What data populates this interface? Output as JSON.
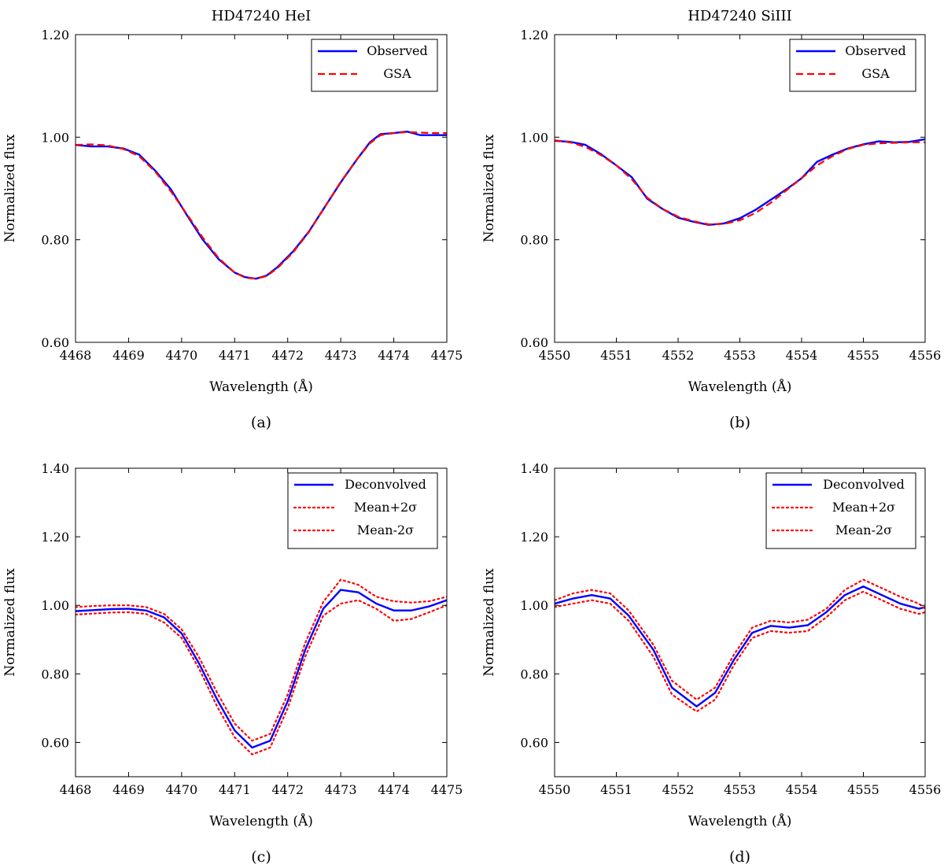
{
  "chart_data": [
    {
      "type": "line",
      "title": "HD47240 HeI",
      "caption": "(a)",
      "xlabel": "Wavelength (Å)",
      "ylabel": "Normalized flux",
      "xlim": [
        4468,
        4475
      ],
      "ylim": [
        0.6,
        1.2
      ],
      "xticks": [
        "4468",
        "4469",
        "4470",
        "4471",
        "4472",
        "4473",
        "4474",
        "4475"
      ],
      "yticks": [
        "0.60",
        "0.80",
        "1.00",
        "1.20"
      ],
      "legend_position": "top-right",
      "series": [
        {
          "name": "Observed",
          "color": "#0000ff",
          "style": "solid",
          "x": [
            4468.0,
            4468.3,
            4468.6,
            4468.9,
            4469.2,
            4469.5,
            4469.8,
            4470.1,
            4470.4,
            4470.7,
            4471.0,
            4471.2,
            4471.4,
            4471.6,
            4471.8,
            4472.1,
            4472.4,
            4472.7,
            4473.0,
            4473.3,
            4473.55,
            4473.75,
            4474.0,
            4474.25,
            4474.5,
            4474.75,
            4475.0
          ],
          "y": [
            0.985,
            0.982,
            0.982,
            0.978,
            0.966,
            0.935,
            0.898,
            0.848,
            0.8,
            0.762,
            0.736,
            0.727,
            0.724,
            0.73,
            0.746,
            0.777,
            0.816,
            0.864,
            0.912,
            0.956,
            0.99,
            1.006,
            1.008,
            1.011,
            1.004,
            1.004,
            1.004
          ]
        },
        {
          "name": "GSA",
          "color": "#ff0000",
          "style": "dashed",
          "x": [
            4468.0,
            4468.3,
            4468.6,
            4468.9,
            4469.2,
            4469.5,
            4469.8,
            4470.1,
            4470.4,
            4470.7,
            4471.0,
            4471.2,
            4471.4,
            4471.6,
            4471.8,
            4472.1,
            4472.4,
            4472.7,
            4473.0,
            4473.3,
            4473.55,
            4473.75,
            4474.0,
            4474.25,
            4474.5,
            4474.75,
            4475.0
          ],
          "y": [
            0.985,
            0.986,
            0.984,
            0.977,
            0.963,
            0.933,
            0.894,
            0.85,
            0.804,
            0.764,
            0.736,
            0.726,
            0.724,
            0.729,
            0.744,
            0.775,
            0.815,
            0.864,
            0.913,
            0.956,
            0.988,
            1.004,
            1.008,
            1.01,
            1.009,
            1.008,
            1.008
          ]
        }
      ]
    },
    {
      "type": "line",
      "title": "HD47240 SiIII",
      "caption": "(b)",
      "xlabel": "Wavelength (Å)",
      "ylabel": "Normalized flux",
      "xlim": [
        4550,
        4556
      ],
      "ylim": [
        0.6,
        1.2
      ],
      "xticks": [
        "4550",
        "4551",
        "4552",
        "4553",
        "4554",
        "4555",
        "4556"
      ],
      "yticks": [
        "0.60",
        "0.80",
        "1.00",
        "1.20"
      ],
      "legend_position": "top-right",
      "series": [
        {
          "name": "Observed",
          "color": "#0000ff",
          "style": "solid",
          "x": [
            4550.0,
            4550.25,
            4550.5,
            4550.75,
            4551.0,
            4551.25,
            4551.5,
            4551.75,
            4552.0,
            4552.25,
            4552.5,
            4552.75,
            4553.0,
            4553.25,
            4553.5,
            4553.75,
            4554.0,
            4554.25,
            4554.5,
            4554.75,
            4555.0,
            4555.25,
            4555.5,
            4555.75,
            4556.0
          ],
          "y": [
            0.993,
            0.991,
            0.985,
            0.967,
            0.945,
            0.922,
            0.88,
            0.86,
            0.843,
            0.835,
            0.829,
            0.832,
            0.842,
            0.858,
            0.878,
            0.898,
            0.92,
            0.952,
            0.966,
            0.978,
            0.986,
            0.992,
            0.99,
            0.991,
            0.996
          ]
        },
        {
          "name": "GSA",
          "color": "#ff0000",
          "style": "dashed",
          "x": [
            4550.0,
            4550.25,
            4550.5,
            4550.75,
            4551.0,
            4551.25,
            4551.5,
            4551.75,
            4552.0,
            4552.25,
            4552.5,
            4552.75,
            4553.0,
            4553.25,
            4553.5,
            4553.75,
            4554.0,
            4554.25,
            4554.5,
            4554.75,
            4555.0,
            4555.25,
            4555.5,
            4555.75,
            4556.0
          ],
          "y": [
            0.994,
            0.99,
            0.981,
            0.965,
            0.945,
            0.918,
            0.882,
            0.86,
            0.845,
            0.836,
            0.83,
            0.831,
            0.838,
            0.852,
            0.872,
            0.896,
            0.92,
            0.945,
            0.963,
            0.977,
            0.985,
            0.988,
            0.989,
            0.99,
            0.99
          ]
        }
      ]
    },
    {
      "type": "line",
      "caption": "(c)",
      "xlabel": "Wavelength (Å)",
      "ylabel": "Normalized flux",
      "xlim": [
        4468,
        4475
      ],
      "ylim": [
        0.5,
        1.4
      ],
      "xticks": [
        "4468",
        "4469",
        "4470",
        "4471",
        "4472",
        "4473",
        "4474",
        "4475"
      ],
      "yticks": [
        "0.60",
        "0.80",
        "1.00",
        "1.20",
        "1.40"
      ],
      "legend_position": "top-right",
      "series": [
        {
          "name": "Deconvolved",
          "color": "#0000ff",
          "style": "solid",
          "x": [
            4468.0,
            4468.33,
            4468.67,
            4469.0,
            4469.33,
            4469.67,
            4470.0,
            4470.33,
            4470.67,
            4471.0,
            4471.33,
            4471.67,
            4472.0,
            4472.33,
            4472.67,
            4473.0,
            4473.33,
            4473.67,
            4474.0,
            4474.33,
            4474.67,
            4475.0
          ],
          "y": [
            0.983,
            0.986,
            0.989,
            0.99,
            0.985,
            0.965,
            0.918,
            0.83,
            0.725,
            0.635,
            0.585,
            0.605,
            0.72,
            0.87,
            0.99,
            1.045,
            1.038,
            1.005,
            0.985,
            0.985,
            0.997,
            1.015
          ]
        },
        {
          "name": "Mean+2σ",
          "color": "#ff0000",
          "style": "dotted",
          "x": [
            4468.0,
            4468.33,
            4468.67,
            4469.0,
            4469.33,
            4469.67,
            4470.0,
            4470.33,
            4470.67,
            4471.0,
            4471.33,
            4471.67,
            4472.0,
            4472.33,
            4472.67,
            4473.0,
            4473.33,
            4473.67,
            4474.0,
            4474.33,
            4474.67,
            4475.0
          ],
          "y": [
            0.995,
            0.998,
            1.0,
            1.0,
            0.995,
            0.975,
            0.93,
            0.848,
            0.745,
            0.655,
            0.605,
            0.625,
            0.74,
            0.89,
            1.01,
            1.075,
            1.06,
            1.025,
            1.012,
            1.008,
            1.012,
            1.025
          ]
        },
        {
          "name": "Mean-2σ",
          "color": "#ff0000",
          "style": "dotted",
          "x": [
            4468.0,
            4468.33,
            4468.67,
            4469.0,
            4469.33,
            4469.67,
            4470.0,
            4470.33,
            4470.67,
            4471.0,
            4471.33,
            4471.67,
            4472.0,
            4472.33,
            4472.67,
            4473.0,
            4473.33,
            4473.67,
            4474.0,
            4474.33,
            4474.67,
            4475.0
          ],
          "y": [
            0.973,
            0.976,
            0.979,
            0.98,
            0.975,
            0.95,
            0.905,
            0.815,
            0.705,
            0.615,
            0.565,
            0.585,
            0.7,
            0.85,
            0.97,
            1.005,
            1.015,
            0.99,
            0.955,
            0.96,
            0.98,
            1.0
          ]
        }
      ]
    },
    {
      "type": "line",
      "caption": "(d)",
      "xlabel": "Wavelength (Å)",
      "ylabel": "Normalized flux",
      "xlim": [
        4550,
        4556
      ],
      "ylim": [
        0.5,
        1.4
      ],
      "xticks": [
        "4550",
        "4551",
        "4552",
        "4553",
        "4554",
        "4555",
        "4556"
      ],
      "yticks": [
        "0.60",
        "0.80",
        "1.00",
        "1.20",
        "1.40"
      ],
      "legend_position": "top-right",
      "series": [
        {
          "name": "Deconvolved",
          "color": "#0000ff",
          "style": "solid",
          "x": [
            4550.0,
            4550.3,
            4550.6,
            4550.9,
            4551.2,
            4551.6,
            4551.9,
            4552.3,
            4552.6,
            4552.9,
            4553.2,
            4553.5,
            4553.8,
            4554.1,
            4554.4,
            4554.7,
            4555.0,
            4555.3,
            4555.6,
            4555.9,
            4556.0
          ],
          "y": [
            1.005,
            1.02,
            1.03,
            1.02,
            0.97,
            0.87,
            0.76,
            0.705,
            0.745,
            0.84,
            0.92,
            0.94,
            0.935,
            0.942,
            0.98,
            1.03,
            1.055,
            1.03,
            1.005,
            0.99,
            0.995
          ]
        },
        {
          "name": "Mean+2σ",
          "color": "#ff0000",
          "style": "dotted",
          "x": [
            4550.0,
            4550.3,
            4550.6,
            4550.9,
            4551.2,
            4551.6,
            4551.9,
            4552.3,
            4552.6,
            4552.9,
            4553.2,
            4553.5,
            4553.8,
            4554.1,
            4554.4,
            4554.7,
            4555.0,
            4555.3,
            4555.6,
            4555.9,
            4556.0
          ],
          "y": [
            1.015,
            1.035,
            1.045,
            1.035,
            0.985,
            0.885,
            0.78,
            0.725,
            0.76,
            0.855,
            0.935,
            0.955,
            0.95,
            0.958,
            0.99,
            1.045,
            1.075,
            1.05,
            1.025,
            1.005,
            0.99
          ]
        },
        {
          "name": "Mean-2σ",
          "color": "#ff0000",
          "style": "dotted",
          "x": [
            4550.0,
            4550.3,
            4550.6,
            4550.9,
            4551.2,
            4551.6,
            4551.9,
            4552.3,
            4552.6,
            4552.9,
            4553.2,
            4553.5,
            4553.8,
            4554.1,
            4554.4,
            4554.7,
            4555.0,
            4555.3,
            4555.6,
            4555.9,
            4556.0
          ],
          "y": [
            0.995,
            1.005,
            1.015,
            1.005,
            0.955,
            0.85,
            0.74,
            0.69,
            0.725,
            0.825,
            0.905,
            0.925,
            0.92,
            0.925,
            0.965,
            1.015,
            1.04,
            1.015,
            0.99,
            0.975,
            0.98
          ]
        }
      ]
    }
  ]
}
